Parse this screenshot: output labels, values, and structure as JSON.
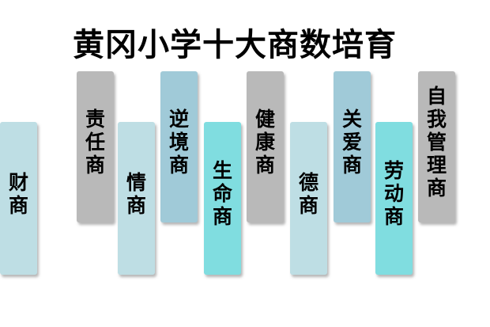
{
  "title": "黄冈小学十大商数培育",
  "background_color": "#ffffff",
  "text_color": "#000000",
  "palette": {
    "gray": "#b9b9b9",
    "steel": "#a0cad8",
    "pale": "#bedee4",
    "cyan": "#80dde0"
  },
  "bars": [
    {
      "label": "责任商",
      "color": "gray",
      "position": "high"
    },
    {
      "label": "情商",
      "color": "pale",
      "position": "low"
    },
    {
      "label": "逆境商",
      "color": "steel",
      "position": "high"
    },
    {
      "label": "生命商",
      "color": "cyan",
      "position": "low"
    },
    {
      "label": "健康商",
      "color": "gray",
      "position": "high"
    },
    {
      "label": "德商",
      "color": "pale",
      "position": "low"
    },
    {
      "label": "关爱商",
      "color": "steel",
      "position": "high"
    },
    {
      "label": "劳动商",
      "color": "cyan",
      "position": "low"
    },
    {
      "label": "自我管理商",
      "color": "gray",
      "position": "high"
    },
    {
      "label": "财商",
      "color": "pale",
      "position": "low"
    }
  ]
}
